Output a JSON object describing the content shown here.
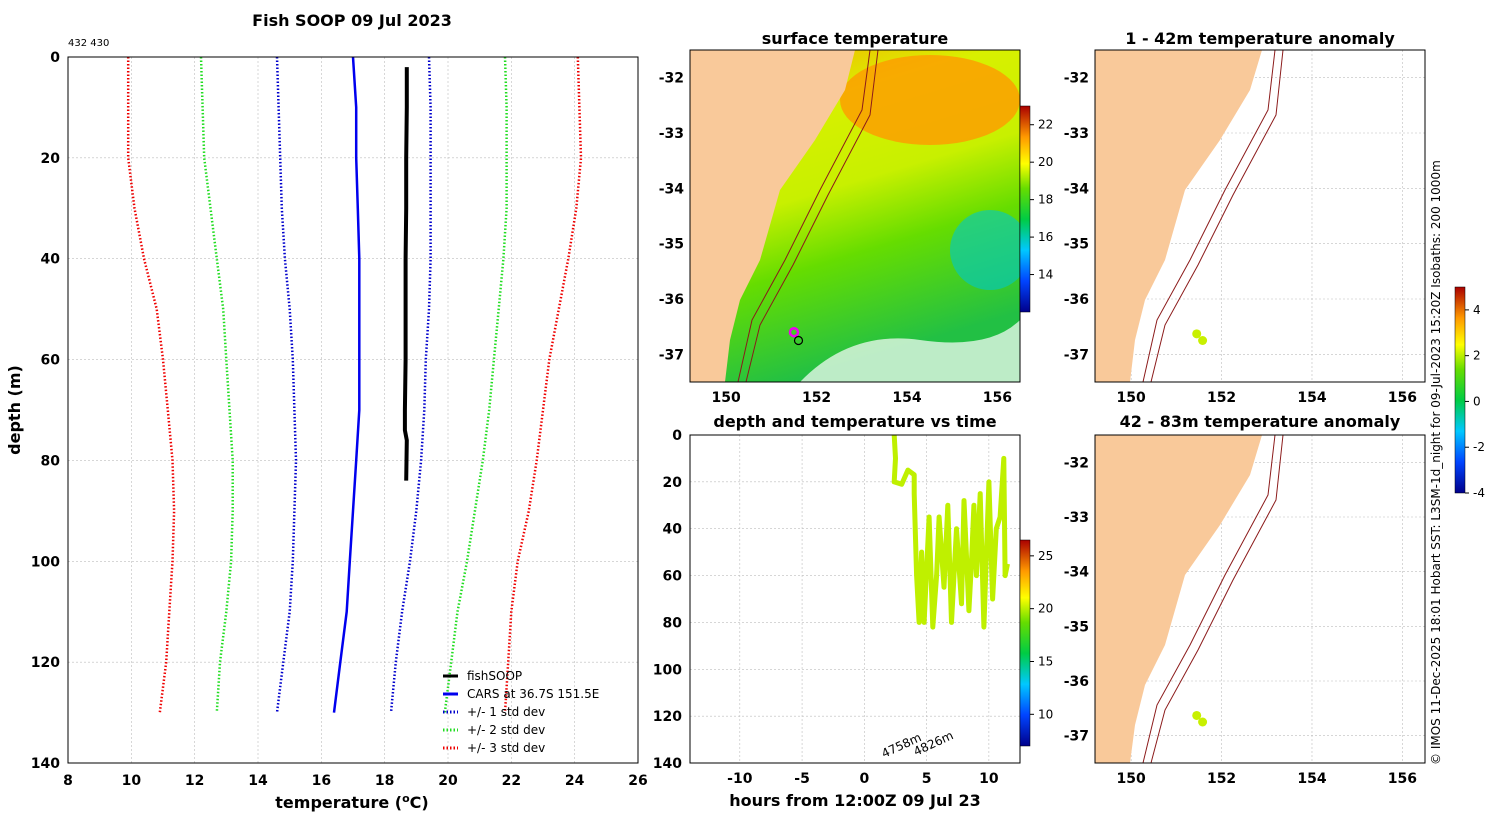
{
  "colors": {
    "land": "#f9c99a",
    "fishsoop": "#000000",
    "cars": "#0000ee",
    "std1": "#0000cc",
    "std2": "#22dd22",
    "std3": "#ee0000",
    "isobath": "#8b1a1a",
    "anomaly_points": "#c8f000",
    "track": "#bff000",
    "marker_magenta": "#ee00ee"
  },
  "chart_data": [
    {
      "type": "line",
      "id": "profile",
      "title": "Fish SOOP 09 Jul 2023",
      "corner_label": "432 430",
      "xlabel": "temperature (°C)",
      "ylabel": "depth (m)",
      "xlim": [
        8,
        26
      ],
      "ylim": [
        0,
        140
      ],
      "xticks": [
        "8",
        "10",
        "12",
        "14",
        "16",
        "18",
        "20",
        "22",
        "24",
        "26"
      ],
      "yticks": [
        "0",
        "20",
        "40",
        "60",
        "80",
        "100",
        "120",
        "140"
      ],
      "depth_grid": [
        0,
        10,
        20,
        30,
        40,
        50,
        60,
        70,
        80,
        90,
        100,
        110,
        120,
        130
      ],
      "series": [
        {
          "name": "fishSOOP",
          "style": "solid",
          "color_key": "fishsoop",
          "points": [
            [
              18.7,
              2
            ],
            [
              18.7,
              10
            ],
            [
              18.68,
              20
            ],
            [
              18.68,
              30
            ],
            [
              18.66,
              40
            ],
            [
              18.66,
              50
            ],
            [
              18.66,
              60
            ],
            [
              18.64,
              70
            ],
            [
              18.64,
              74
            ],
            [
              18.7,
              76
            ],
            [
              18.68,
              84
            ]
          ]
        },
        {
          "name": "CARS at 36.7S 151.5E",
          "style": "solid",
          "color_key": "cars",
          "values": [
            17.0,
            17.1,
            17.1,
            17.15,
            17.2,
            17.2,
            17.2,
            17.2,
            17.1,
            17.0,
            16.9,
            16.8,
            16.6,
            16.4
          ]
        },
        {
          "name": "+/- 1 std dev",
          "style": "dotted",
          "color_key": "std1",
          "lower": [
            14.6,
            14.65,
            14.7,
            14.75,
            14.85,
            15.0,
            15.1,
            15.15,
            15.2,
            15.15,
            15.1,
            15.0,
            14.8,
            14.6
          ],
          "upper": [
            19.4,
            19.45,
            19.45,
            19.45,
            19.45,
            19.4,
            19.3,
            19.25,
            19.15,
            19.0,
            18.8,
            18.55,
            18.35,
            18.2
          ]
        },
        {
          "name": "+/- 2 std dev",
          "style": "dotted",
          "color_key": "std2",
          "lower": [
            12.2,
            12.25,
            12.3,
            12.5,
            12.7,
            12.9,
            13.0,
            13.1,
            13.2,
            13.2,
            13.15,
            13.0,
            12.8,
            12.7
          ],
          "upper": [
            21.8,
            21.85,
            21.85,
            21.85,
            21.75,
            21.6,
            21.45,
            21.3,
            21.1,
            20.85,
            20.6,
            20.3,
            20.1,
            19.9
          ]
        },
        {
          "name": "+/- 3 std dev",
          "style": "dotted",
          "color_key": "std3",
          "lower": [
            9.9,
            9.9,
            9.9,
            10.1,
            10.4,
            10.8,
            11.0,
            11.15,
            11.3,
            11.35,
            11.3,
            11.2,
            11.1,
            10.9
          ],
          "upper": [
            24.1,
            24.15,
            24.2,
            24.05,
            23.8,
            23.5,
            23.2,
            23.0,
            22.8,
            22.55,
            22.2,
            22.0,
            21.9,
            21.8
          ]
        }
      ],
      "legend": [
        "fishSOOP",
        "CARS at 36.7S 151.5E",
        "+/- 1 std dev",
        "+/- 2 std dev",
        "+/- 3 std dev"
      ]
    },
    {
      "type": "heatmap",
      "id": "surface_temperature",
      "title": "surface temperature",
      "xlim": [
        149.2,
        156.5
      ],
      "ylim": [
        -37.5,
        -31.5
      ],
      "xticks": [
        "150",
        "152",
        "154",
        "156"
      ],
      "yticks": [
        "-32",
        "-33",
        "-34",
        "-35",
        "-36",
        "-37"
      ],
      "colorbar": {
        "min": 12,
        "max": 23,
        "ticks": [
          "22",
          "20",
          "18",
          "16",
          "14"
        ]
      },
      "markers": [
        {
          "lon": 151.5,
          "lat": -36.6,
          "kind": "magenta-circle"
        },
        {
          "lon": 151.6,
          "lat": -36.75,
          "kind": "black-circle"
        }
      ]
    },
    {
      "type": "scatter",
      "id": "anomaly_shallow",
      "title": "1 - 42m temperature anomaly",
      "xlim": [
        149.2,
        156.5
      ],
      "ylim": [
        -37.5,
        -31.5
      ],
      "xticks": [
        "150",
        "152",
        "154",
        "156"
      ],
      "yticks": [
        "-32",
        "-33",
        "-34",
        "-35",
        "-36",
        "-37"
      ],
      "points": [
        [
          151.45,
          -36.63
        ],
        [
          151.58,
          -36.75
        ]
      ],
      "colorbar": {
        "min": -4,
        "max": 5,
        "ticks": [
          "4",
          "2",
          "0",
          "-2",
          "-4"
        ]
      }
    },
    {
      "type": "scatter",
      "id": "anomaly_deep",
      "title": "42 - 83m temperature anomaly",
      "xlim": [
        149.2,
        156.5
      ],
      "ylim": [
        -37.5,
        -31.5
      ],
      "xticks": [
        "150",
        "152",
        "154",
        "156"
      ],
      "yticks": [
        "-32",
        "-33",
        "-34",
        "-35",
        "-36",
        "-37"
      ],
      "points": [
        [
          151.45,
          -36.63
        ],
        [
          151.58,
          -36.75
        ]
      ]
    },
    {
      "type": "line",
      "id": "depth_vs_time",
      "title": "depth and temperature vs time",
      "xlabel": "hours from 12:00Z 09 Jul 23",
      "xlim": [
        -14,
        12.5
      ],
      "ylim": [
        0,
        140
      ],
      "xticks": [
        "-10",
        "-5",
        "0",
        "5",
        "10"
      ],
      "yticks": [
        "0",
        "20",
        "40",
        "60",
        "80",
        "100",
        "120",
        "140"
      ],
      "annotations": [
        "4758m",
        "4826m"
      ],
      "colorbar": {
        "min": 7,
        "max": 26.5,
        "ticks": [
          "25",
          "20",
          "15",
          "10"
        ]
      },
      "track": [
        [
          2.4,
          0
        ],
        [
          2.5,
          10
        ],
        [
          2.4,
          20
        ],
        [
          3,
          21
        ],
        [
          3.5,
          15
        ],
        [
          4,
          17
        ],
        [
          4,
          25
        ],
        [
          4.2,
          60
        ],
        [
          4.4,
          80
        ],
        [
          4.6,
          50
        ],
        [
          4.8,
          80
        ],
        [
          5.2,
          35
        ],
        [
          5.5,
          82
        ],
        [
          5.8,
          60
        ],
        [
          6.0,
          35
        ],
        [
          6.4,
          65
        ],
        [
          6.7,
          30
        ],
        [
          7.0,
          80
        ],
        [
          7.4,
          40
        ],
        [
          7.8,
          72
        ],
        [
          8.0,
          28
        ],
        [
          8.4,
          75
        ],
        [
          8.6,
          55
        ],
        [
          8.8,
          30
        ],
        [
          9.0,
          60
        ],
        [
          9.3,
          25
        ],
        [
          9.6,
          82
        ],
        [
          10.0,
          20
        ],
        [
          10.3,
          70
        ],
        [
          10.6,
          40
        ],
        [
          10.9,
          35
        ],
        [
          11.2,
          10
        ],
        [
          11.3,
          60
        ],
        [
          11.5,
          55
        ]
      ]
    }
  ],
  "side_caption": "© IMOS 11-Dec-2025 18:01 Hobart SST: L3SM-1d_night for 09-Jul-2023 15:20Z Isobaths: 200  1000m"
}
